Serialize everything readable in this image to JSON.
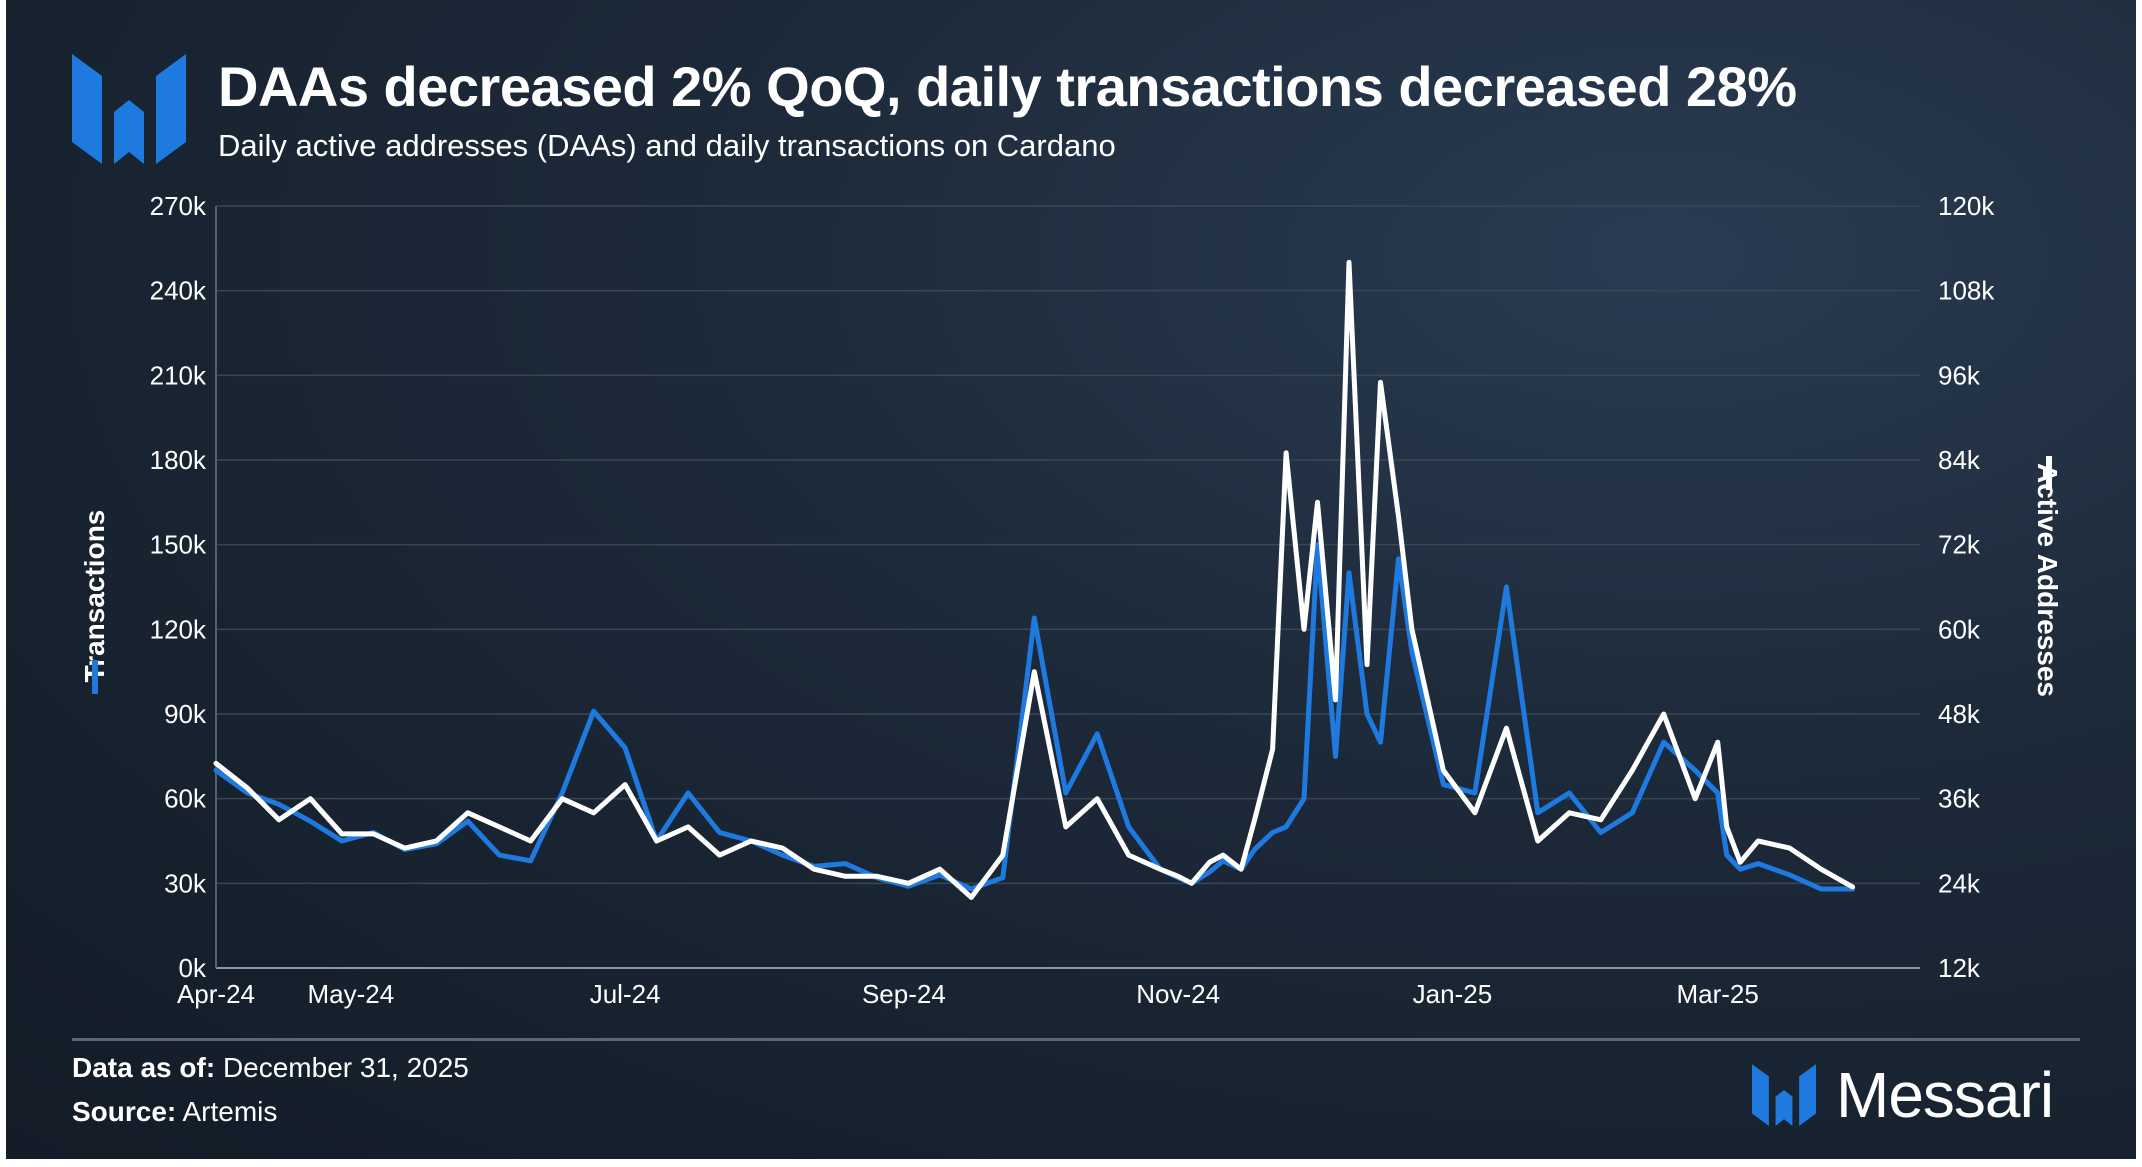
{
  "header": {
    "title": "DAAs decreased 2% QoQ, daily transactions decreased 28%",
    "subtitle": "Daily active addresses (DAAs) and daily transactions on Cardano"
  },
  "footer": {
    "data_as_of_label": "Data as of:",
    "data_as_of_value": "December 31, 2025",
    "source_label": "Source:",
    "source_value": "Artemis",
    "brand": "Messari"
  },
  "colors": {
    "transactions": "#1f7ae0",
    "active_addresses": "#ffffff",
    "background": "#1a2533",
    "grid": "#3a4654"
  },
  "chart_data": {
    "type": "line",
    "x_tick_labels": [
      "Apr-24",
      "May-24",
      "Jul-24",
      "Sep-24",
      "Nov-24",
      "Jan-25",
      "Mar-25"
    ],
    "y_left": {
      "label": "Transactions",
      "ticks": [
        "0k",
        "30k",
        "60k",
        "90k",
        "120k",
        "150k",
        "180k",
        "210k",
        "240k",
        "270k"
      ],
      "range": [
        0,
        270000
      ]
    },
    "y_right": {
      "label": "Active Addresses",
      "ticks": [
        "12k",
        "24k",
        "36k",
        "48k",
        "60k",
        "72k",
        "84k",
        "96k",
        "108k",
        "120k"
      ],
      "range": [
        12000,
        120000
      ]
    },
    "grid": true,
    "legend": "axis titles with colored markers",
    "x": [
      "2024-04-01",
      "2024-04-08",
      "2024-04-15",
      "2024-04-22",
      "2024-04-29",
      "2024-05-06",
      "2024-05-13",
      "2024-05-20",
      "2024-05-27",
      "2024-06-03",
      "2024-06-10",
      "2024-06-17",
      "2024-06-24",
      "2024-07-01",
      "2024-07-08",
      "2024-07-15",
      "2024-07-22",
      "2024-07-29",
      "2024-08-05",
      "2024-08-12",
      "2024-08-19",
      "2024-08-26",
      "2024-09-02",
      "2024-09-09",
      "2024-09-16",
      "2024-09-23",
      "2024-09-30",
      "2024-10-07",
      "2024-10-14",
      "2024-10-21",
      "2024-10-28",
      "2024-11-01",
      "2024-11-04",
      "2024-11-08",
      "2024-11-11",
      "2024-11-15",
      "2024-11-18",
      "2024-11-22",
      "2024-11-25",
      "2024-11-29",
      "2024-12-02",
      "2024-12-06",
      "2024-12-09",
      "2024-12-13",
      "2024-12-16",
      "2024-12-20",
      "2024-12-23",
      "2024-12-30",
      "2025-01-06",
      "2025-01-13",
      "2025-01-20",
      "2025-01-27",
      "2025-02-03",
      "2025-02-10",
      "2025-02-17",
      "2025-02-24",
      "2025-03-01",
      "2025-03-03",
      "2025-03-06",
      "2025-03-10",
      "2025-03-17",
      "2025-03-24",
      "2025-03-31"
    ],
    "series": [
      {
        "name": "Transactions",
        "axis": "left",
        "values": [
          70000,
          62000,
          58000,
          52000,
          45000,
          48000,
          42000,
          44000,
          52000,
          40000,
          38000,
          62000,
          91000,
          78000,
          45000,
          62000,
          48000,
          45000,
          40000,
          36000,
          37000,
          32000,
          29000,
          33000,
          28000,
          32000,
          124000,
          62000,
          83000,
          50000,
          35000,
          32000,
          30000,
          34000,
          38000,
          35000,
          42000,
          48000,
          50000,
          60000,
          150000,
          75000,
          140000,
          90000,
          80000,
          145000,
          112000,
          65000,
          62000,
          135000,
          55000,
          62000,
          48000,
          55000,
          80000,
          70000,
          62000,
          40000,
          35000,
          37000,
          33000,
          28000,
          28000
        ]
      },
      {
        "name": "Active Addresses",
        "axis": "right",
        "values": [
          41000,
          37500,
          33000,
          36000,
          31000,
          31000,
          29000,
          30000,
          34000,
          32000,
          30000,
          36000,
          34000,
          38000,
          30000,
          32000,
          28000,
          30000,
          29000,
          26000,
          25000,
          25000,
          24000,
          26000,
          22000,
          28000,
          54000,
          32000,
          36000,
          28000,
          26000,
          25000,
          24000,
          27000,
          28000,
          26000,
          33000,
          43000,
          85000,
          60000,
          78000,
          50000,
          112000,
          55000,
          95000,
          76000,
          60000,
          40000,
          34000,
          46000,
          30000,
          34000,
          33000,
          40000,
          48000,
          36000,
          44000,
          32000,
          27000,
          30000,
          29000,
          26000,
          23500
        ]
      }
    ]
  }
}
